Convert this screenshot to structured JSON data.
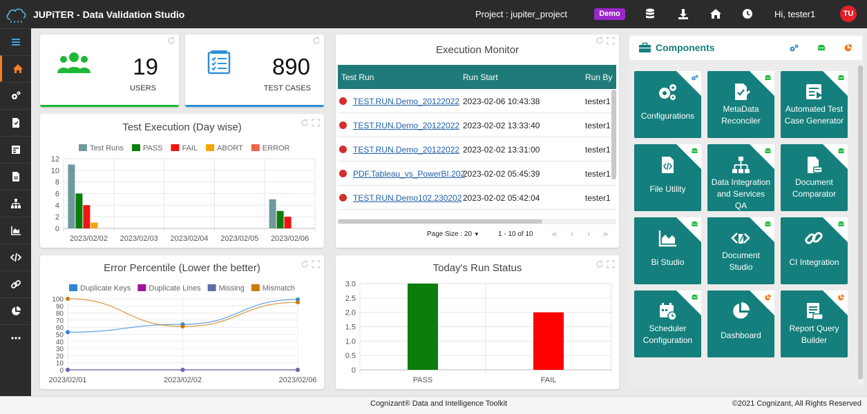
{
  "header": {
    "app_title": "JUPiTER - Data Validation Studio",
    "project_label": "Project :  jupiter_project",
    "env_badge": "Demo",
    "greeting": "Hi,  tester1",
    "avatar_initials": "TU",
    "icons": [
      "database-icon",
      "download-icon",
      "home-icon",
      "clock-icon"
    ]
  },
  "sidebar": {
    "items": [
      {
        "icon": "menu-icon"
      },
      {
        "icon": "home-icon",
        "active": true
      },
      {
        "icon": "gears-icon"
      },
      {
        "icon": "file-icon"
      },
      {
        "icon": "table-icon"
      },
      {
        "icon": "document-icon"
      },
      {
        "icon": "sitemap-icon"
      },
      {
        "icon": "chart-icon"
      },
      {
        "icon": "code-icon"
      },
      {
        "icon": "link-icon"
      },
      {
        "icon": "pie-icon"
      },
      {
        "icon": "more-icon"
      }
    ]
  },
  "stats": {
    "users": {
      "value": "19",
      "label": "USERS",
      "color": "#1db836"
    },
    "test_cases": {
      "value": "890",
      "label": "TEST CASES",
      "color": "#2e8fd6"
    }
  },
  "test_execution": {
    "title": "Test Execution (Day wise)"
  },
  "error_percentile": {
    "title": "Error Percentile (Lower the better)"
  },
  "execution_monitor": {
    "title": "Execution Monitor",
    "columns": [
      "Test Run",
      "Run Start",
      "Run By"
    ],
    "rows": [
      {
        "run": "TEST.RUN.Demo_20122022",
        "start": "2023-02-06 10:43:38",
        "by": "tester1"
      },
      {
        "run": "TEST.RUN.Demo_20122022",
        "start": "2023-02-02 13:33:40",
        "by": "tester1"
      },
      {
        "run": "TEST.RUN.Demo_20122022",
        "start": "2023-02-02 13:31:00",
        "by": "tester1"
      },
      {
        "run": "PDF.Tableau_vs_PowerBI.202",
        "start": "2023-02-02 05:45:39",
        "by": "tester1"
      },
      {
        "run": "TEST.RUN.Demo102.230202",
        "start": "2023-02-02 05:42:04",
        "by": "tester1"
      }
    ],
    "page_size": "Page Size : 20",
    "range": "1 - 10 of 10",
    "pager": [
      "«",
      "‹",
      "›",
      "»"
    ]
  },
  "run_status": {
    "title": "Today's Run Status"
  },
  "components": {
    "title": "Components",
    "tiles": [
      {
        "label": "Configurations",
        "badge": "gear"
      },
      {
        "label": "MetaData Reconciler",
        "badge": "db"
      },
      {
        "label": "Automated Test Case Generator",
        "badge": "db"
      },
      {
        "label": "File Utility",
        "badge": "db"
      },
      {
        "label": "Data Integration and Services QA",
        "badge": "db"
      },
      {
        "label": "Document Comparator",
        "badge": "db"
      },
      {
        "label": "Bi Studio",
        "badge": "db"
      },
      {
        "label": "Document Studio",
        "badge": "db"
      },
      {
        "label": "CI Integration",
        "badge": "db"
      },
      {
        "label": "Scheduler Configuration",
        "badge": "db"
      },
      {
        "label": "Dashboard",
        "badge": "pie"
      },
      {
        "label": "Report Query Builder",
        "badge": "pie"
      }
    ]
  },
  "footer": {
    "center": "Cognizant® Data and Intelligence Toolkit",
    "right": "©2021 Cognizant, All Rights Reserved"
  },
  "chart_data": [
    {
      "type": "bar",
      "title": "Test Execution (Day wise)",
      "categories": [
        "2023/02/02",
        "2023/02/03",
        "2023/02/04",
        "2023/02/05",
        "2023/02/06"
      ],
      "series": [
        {
          "name": "Test Runs",
          "color": "#6f9a9b",
          "values": [
            11,
            0,
            0,
            0,
            5
          ]
        },
        {
          "name": "PASS",
          "color": "#0b7d0b",
          "values": [
            6,
            0,
            0,
            0,
            3
          ]
        },
        {
          "name": "FAIL",
          "color": "#f11414",
          "values": [
            4,
            0,
            0,
            0,
            2
          ]
        },
        {
          "name": "ABORT",
          "color": "#f5a50a",
          "values": [
            1,
            0,
            0,
            0,
            0
          ]
        },
        {
          "name": "ERROR",
          "color": "#f2644b",
          "values": [
            0,
            0,
            0,
            0,
            0
          ]
        }
      ],
      "ylim": [
        0,
        12
      ],
      "yticks": [
        "0",
        "2",
        "4",
        "6",
        "8",
        "10",
        "12"
      ]
    },
    {
      "type": "line",
      "title": "Error Percentile (Lower the better)",
      "x": [
        "2023/02/01",
        "2023/02/02",
        "2023/02/06"
      ],
      "series": [
        {
          "name": "Duplicate Keys",
          "color": "#2f86d3",
          "values": [
            53,
            64,
            99
          ]
        },
        {
          "name": "Duplicate Lines",
          "color": "#a0129e",
          "values": [
            0,
            0,
            0
          ]
        },
        {
          "name": "Missing",
          "color": "#6669a8",
          "values": [
            0,
            0,
            0
          ]
        },
        {
          "name": "Mismatch",
          "color": "#cc7a0a",
          "values": [
            100,
            61,
            95
          ]
        }
      ],
      "ylim": [
        0,
        100
      ],
      "yticks": [
        "0",
        "10",
        "20",
        "30",
        "40",
        "50",
        "60",
        "70",
        "80",
        "90",
        "100"
      ]
    },
    {
      "type": "bar",
      "title": "Today's Run Status",
      "categories": [
        "PASS",
        "FAIL"
      ],
      "values": [
        3,
        2
      ],
      "colors": [
        "#0b7d0b",
        "#ff0000"
      ],
      "ylim": [
        0,
        3
      ],
      "yticks": [
        "0",
        "0.5",
        "1.0",
        "1.5",
        "2.0",
        "2.5",
        "3.0"
      ]
    }
  ]
}
